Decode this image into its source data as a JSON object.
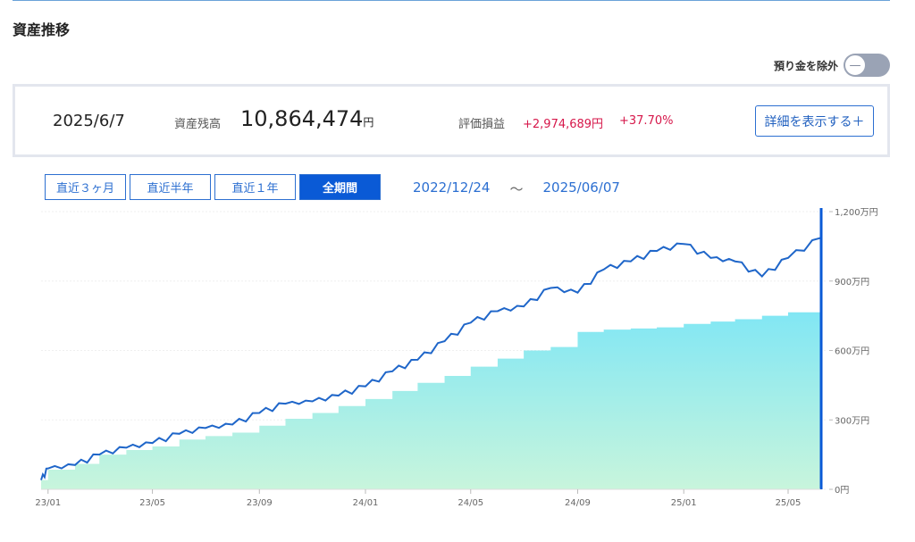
{
  "header": {
    "title": "資産推移"
  },
  "toggle": {
    "label": "預り金を除外",
    "knob_symbol": "—"
  },
  "summary": {
    "date": "2025/6/7",
    "balance_label": "資産残高",
    "balance_value": "10,864,474",
    "balance_unit": "円",
    "pl_label": "評価損益",
    "pl_value": "+2,974,689円",
    "pl_pct": "+37.70%",
    "detail_button": "詳細を表示する＋"
  },
  "period_tabs": [
    {
      "label": "直近３ヶ月",
      "active": false
    },
    {
      "label": "直近半年",
      "active": false
    },
    {
      "label": "直近１年",
      "active": false
    },
    {
      "label": "全期間",
      "active": true
    }
  ],
  "range": {
    "start": "2022/12/24",
    "sep": "～",
    "end": "2025/06/07"
  },
  "colors": {
    "accent": "#0a5ad6",
    "asset_line": "#1f66c9",
    "area_top": "#7fe6f5",
    "area_bottom": "#c8f5dc",
    "loss_gain": "#d6174a"
  },
  "chart_data": {
    "type": "line",
    "x_tick_labels": [
      "23/01",
      "23/05",
      "23/09",
      "24/01",
      "24/05",
      "24/09",
      "25/01",
      "25/05"
    ],
    "y_tick_labels": [
      "1,200万円",
      "900万円",
      "600万円",
      "300万円",
      "0円"
    ],
    "ylim": [
      0,
      1200
    ],
    "y_unit": "万円",
    "x_range": [
      "2022-12-24",
      "2025-06-07"
    ],
    "series": [
      {
        "kind": "line",
        "x": [
          "2022-12-24",
          "2023-01-01",
          "2023-02-01",
          "2023-03-01",
          "2023-04-01",
          "2023-05-01",
          "2023-06-01",
          "2023-07-01",
          "2023-08-01",
          "2023-09-01",
          "2023-10-01",
          "2023-11-01",
          "2023-12-01",
          "2024-01-01",
          "2024-02-01",
          "2024-03-01",
          "2024-04-01",
          "2024-05-01",
          "2024-06-01",
          "2024-07-01",
          "2024-08-01",
          "2024-09-01",
          "2024-10-01",
          "2024-11-01",
          "2024-12-01",
          "2025-01-01",
          "2025-02-01",
          "2025-03-01",
          "2025-04-01",
          "2025-05-01",
          "2025-06-07"
        ],
        "values": [
          40,
          90,
          105,
          150,
          180,
          200,
          240,
          265,
          280,
          330,
          370,
          380,
          405,
          445,
          510,
          560,
          640,
          720,
          770,
          790,
          870,
          850,
          950,
          985,
          1030,
          1060,
          1000,
          985,
          920,
          1000,
          1086
        ]
      },
      {
        "kind": "area",
        "x": [
          "2022-12-24",
          "2023-01-01",
          "2023-02-01",
          "2023-03-01",
          "2023-04-01",
          "2023-05-01",
          "2023-06-01",
          "2023-07-01",
          "2023-08-01",
          "2023-09-01",
          "2023-10-01",
          "2023-11-01",
          "2023-12-01",
          "2024-01-01",
          "2024-02-01",
          "2024-03-01",
          "2024-04-01",
          "2024-05-01",
          "2024-06-01",
          "2024-07-01",
          "2024-08-01",
          "2024-09-01",
          "2024-10-01",
          "2024-11-01",
          "2024-12-01",
          "2025-01-01",
          "2025-02-01",
          "2025-03-01",
          "2025-04-01",
          "2025-05-01",
          "2025-06-07"
        ],
        "values": [
          40,
          85,
          110,
          150,
          170,
          185,
          215,
          230,
          245,
          275,
          305,
          330,
          360,
          390,
          425,
          460,
          490,
          530,
          565,
          600,
          615,
          680,
          690,
          695,
          700,
          715,
          725,
          735,
          750,
          765,
          789
        ]
      }
    ]
  }
}
